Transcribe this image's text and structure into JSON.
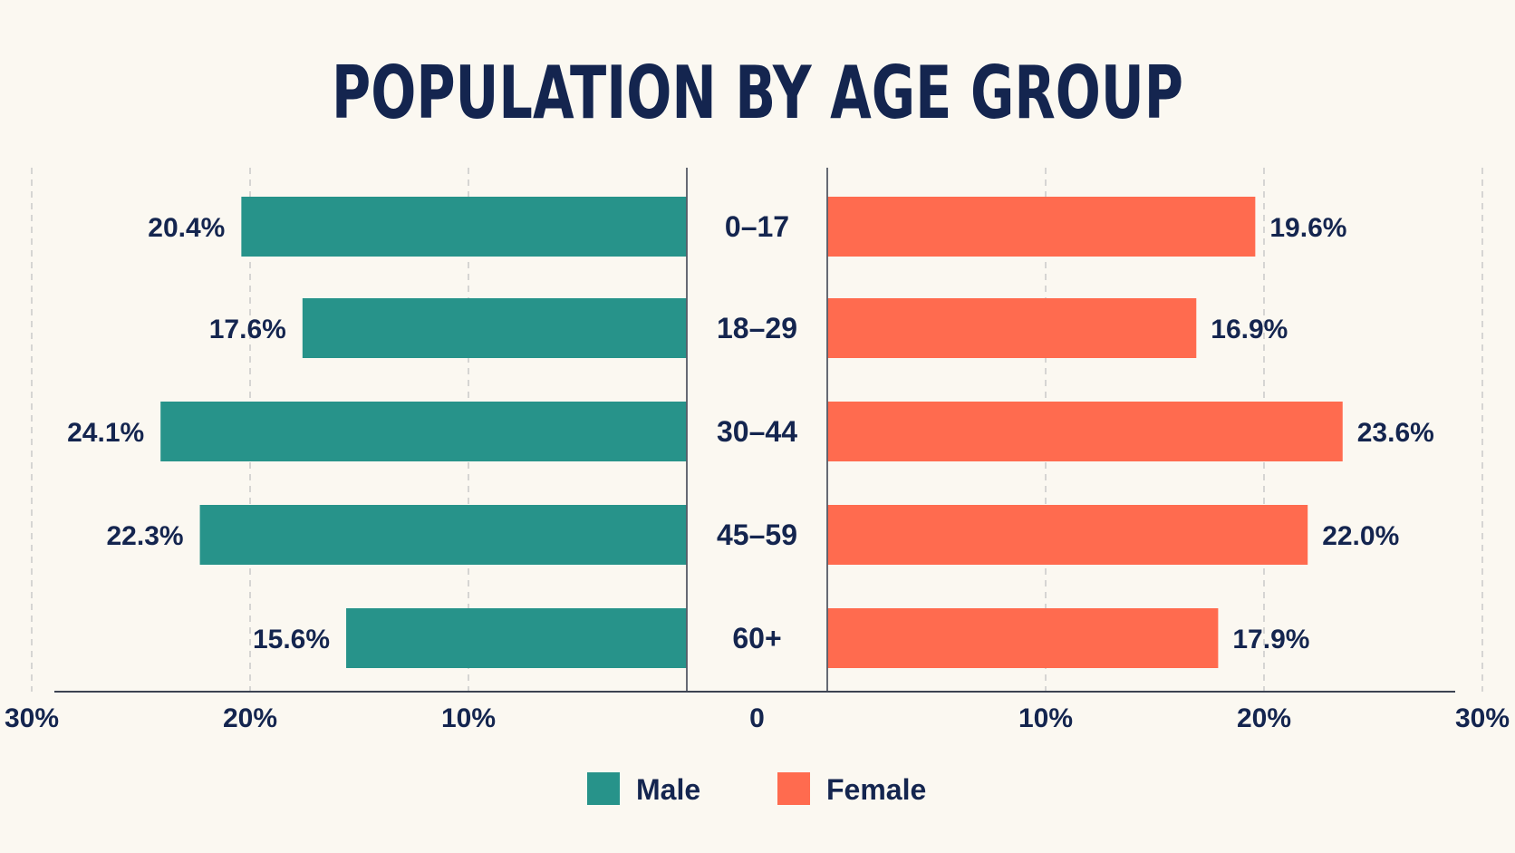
{
  "chart_data": {
    "type": "bar",
    "title": "POPULATION BY AGE GROUP",
    "categories": [
      "0–17",
      "18–29",
      "30–44",
      "45–59",
      "60+"
    ],
    "series": [
      {
        "name": "Male",
        "color": "#27938a",
        "values": [
          20.4,
          17.6,
          24.1,
          22.3,
          15.6
        ],
        "labels": [
          "20.4%",
          "17.6%",
          "24.1%",
          "22.3%",
          "15.6%"
        ]
      },
      {
        "name": "Female",
        "color": "#ff6b4f",
        "values": [
          19.6,
          16.9,
          23.6,
          22.0,
          17.9
        ],
        "labels": [
          "19.6%",
          "16.9%",
          "23.6%",
          "22.0%",
          "17.9%"
        ]
      }
    ],
    "xlim": [
      0,
      30
    ],
    "ticks": {
      "left": [
        "30%",
        "20%",
        "10%"
      ],
      "center": "0",
      "right": [
        "10%",
        "20%",
        "30%"
      ]
    },
    "grid": true,
    "legend_position": "bottom-center"
  }
}
